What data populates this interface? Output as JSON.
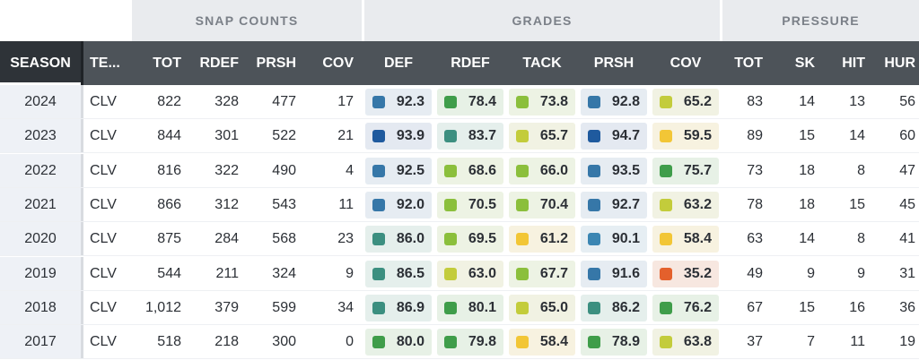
{
  "groups": {
    "snap": "SNAP COUNTS",
    "grades": "GRADES",
    "pressure": "PRESSURE"
  },
  "headers": {
    "season": "SEASON",
    "team": "TE...",
    "tot": "TOT",
    "rdef": "RDEF",
    "prsh": "PRSH",
    "cov": "COV",
    "g_def": "DEF",
    "g_rdef": "RDEF",
    "g_tack": "TACK",
    "g_prsh": "PRSH",
    "g_cov": "COV",
    "p_tot": "TOT",
    "p_sk": "SK",
    "p_hit": "HIT",
    "p_hur": "HUR"
  },
  "colors": {
    "elite_dark": "#1f5a9e",
    "elite": "#3677a8",
    "high": "#3b86b3",
    "teal": "#3c8f80",
    "green": "#3f9d4a",
    "lime": "#8bbf3c",
    "yellowgreen": "#c3cc3b",
    "yellow": "#f2c636",
    "orange": "#e4602c"
  },
  "rows": [
    {
      "season": "2024",
      "team": "CLV",
      "tot": "822",
      "rdef": "328",
      "prsh": "477",
      "cov": "17",
      "g_def": {
        "v": "92.3",
        "c": "elite",
        "bg": "#e6ecf2"
      },
      "g_rdef": {
        "v": "78.4",
        "c": "green",
        "bg": "#e7f1e6"
      },
      "g_tack": {
        "v": "73.8",
        "c": "lime",
        "bg": "#edf3e4"
      },
      "g_prsh": {
        "v": "92.8",
        "c": "elite",
        "bg": "#e6ecf2"
      },
      "g_cov": {
        "v": "65.2",
        "c": "yellowgreen",
        "bg": "#f1f2e3"
      },
      "p_tot": "83",
      "p_sk": "14",
      "p_hit": "13",
      "p_hur": "56"
    },
    {
      "season": "2023",
      "team": "CLV",
      "tot": "844",
      "rdef": "301",
      "prsh": "522",
      "cov": "21",
      "g_def": {
        "v": "93.9",
        "c": "elite_dark",
        "bg": "#e4e9f1"
      },
      "g_rdef": {
        "v": "83.7",
        "c": "teal",
        "bg": "#e5efec"
      },
      "g_tack": {
        "v": "65.7",
        "c": "yellowgreen",
        "bg": "#f1f2e3"
      },
      "g_prsh": {
        "v": "94.7",
        "c": "elite_dark",
        "bg": "#e4e9f1"
      },
      "g_cov": {
        "v": "59.5",
        "c": "yellow",
        "bg": "#f7f2e0"
      },
      "p_tot": "89",
      "p_sk": "15",
      "p_hit": "14",
      "p_hur": "60"
    },
    {
      "season": "2022",
      "team": "CLV",
      "tot": "816",
      "rdef": "322",
      "prsh": "490",
      "cov": "4",
      "g_def": {
        "v": "92.5",
        "c": "elite",
        "bg": "#e6ecf2"
      },
      "g_rdef": {
        "v": "68.6",
        "c": "lime",
        "bg": "#edf3e4"
      },
      "g_tack": {
        "v": "66.0",
        "c": "lime",
        "bg": "#edf3e4"
      },
      "g_prsh": {
        "v": "93.5",
        "c": "elite",
        "bg": "#e6ecf2"
      },
      "g_cov": {
        "v": "75.7",
        "c": "green",
        "bg": "#e7f1e6"
      },
      "p_tot": "73",
      "p_sk": "18",
      "p_hit": "8",
      "p_hur": "47"
    },
    {
      "season": "2021",
      "team": "CLV",
      "tot": "866",
      "rdef": "312",
      "prsh": "543",
      "cov": "11",
      "g_def": {
        "v": "92.0",
        "c": "elite",
        "bg": "#e6ecf2"
      },
      "g_rdef": {
        "v": "70.5",
        "c": "lime",
        "bg": "#edf3e4"
      },
      "g_tack": {
        "v": "70.4",
        "c": "lime",
        "bg": "#edf3e4"
      },
      "g_prsh": {
        "v": "92.7",
        "c": "elite",
        "bg": "#e6ecf2"
      },
      "g_cov": {
        "v": "63.2",
        "c": "yellowgreen",
        "bg": "#f1f2e3"
      },
      "p_tot": "78",
      "p_sk": "18",
      "p_hit": "15",
      "p_hur": "45"
    },
    {
      "season": "2020",
      "team": "CLV",
      "tot": "875",
      "rdef": "284",
      "prsh": "568",
      "cov": "23",
      "g_def": {
        "v": "86.0",
        "c": "teal",
        "bg": "#e5efec"
      },
      "g_rdef": {
        "v": "69.5",
        "c": "lime",
        "bg": "#edf3e4"
      },
      "g_tack": {
        "v": "61.2",
        "c": "yellow",
        "bg": "#f7f2e0"
      },
      "g_prsh": {
        "v": "90.1",
        "c": "high",
        "bg": "#e6eef3"
      },
      "g_cov": {
        "v": "58.4",
        "c": "yellow",
        "bg": "#f7f2e0"
      },
      "p_tot": "63",
      "p_sk": "14",
      "p_hit": "8",
      "p_hur": "41"
    },
    {
      "season": "2019",
      "team": "CLV",
      "tot": "544",
      "rdef": "211",
      "prsh": "324",
      "cov": "9",
      "g_def": {
        "v": "86.5",
        "c": "teal",
        "bg": "#e5efec"
      },
      "g_rdef": {
        "v": "63.0",
        "c": "yellowgreen",
        "bg": "#f1f2e3"
      },
      "g_tack": {
        "v": "67.7",
        "c": "lime",
        "bg": "#edf3e4"
      },
      "g_prsh": {
        "v": "91.6",
        "c": "elite",
        "bg": "#e6ecf2"
      },
      "g_cov": {
        "v": "35.2",
        "c": "orange",
        "bg": "#f7e7e0"
      },
      "p_tot": "49",
      "p_sk": "9",
      "p_hit": "9",
      "p_hur": "31"
    },
    {
      "season": "2018",
      "team": "CLV",
      "tot": "1,012",
      "rdef": "379",
      "prsh": "599",
      "cov": "34",
      "g_def": {
        "v": "86.9",
        "c": "teal",
        "bg": "#e5efec"
      },
      "g_rdef": {
        "v": "80.1",
        "c": "green",
        "bg": "#e7f1e6"
      },
      "g_tack": {
        "v": "65.0",
        "c": "yellowgreen",
        "bg": "#f1f2e3"
      },
      "g_prsh": {
        "v": "86.2",
        "c": "teal",
        "bg": "#e5efec"
      },
      "g_cov": {
        "v": "76.2",
        "c": "green",
        "bg": "#e7f1e6"
      },
      "p_tot": "67",
      "p_sk": "15",
      "p_hit": "16",
      "p_hur": "36"
    },
    {
      "season": "2017",
      "team": "CLV",
      "tot": "518",
      "rdef": "218",
      "prsh": "300",
      "cov": "0",
      "g_def": {
        "v": "80.0",
        "c": "green",
        "bg": "#e7f1e6"
      },
      "g_rdef": {
        "v": "79.8",
        "c": "green",
        "bg": "#e7f1e6"
      },
      "g_tack": {
        "v": "58.4",
        "c": "yellow",
        "bg": "#f7f2e0"
      },
      "g_prsh": {
        "v": "78.9",
        "c": "green",
        "bg": "#e7f1e6"
      },
      "g_cov": {
        "v": "63.8",
        "c": "yellowgreen",
        "bg": "#f1f2e3"
      },
      "p_tot": "37",
      "p_sk": "7",
      "p_hit": "11",
      "p_hur": "19"
    }
  ]
}
